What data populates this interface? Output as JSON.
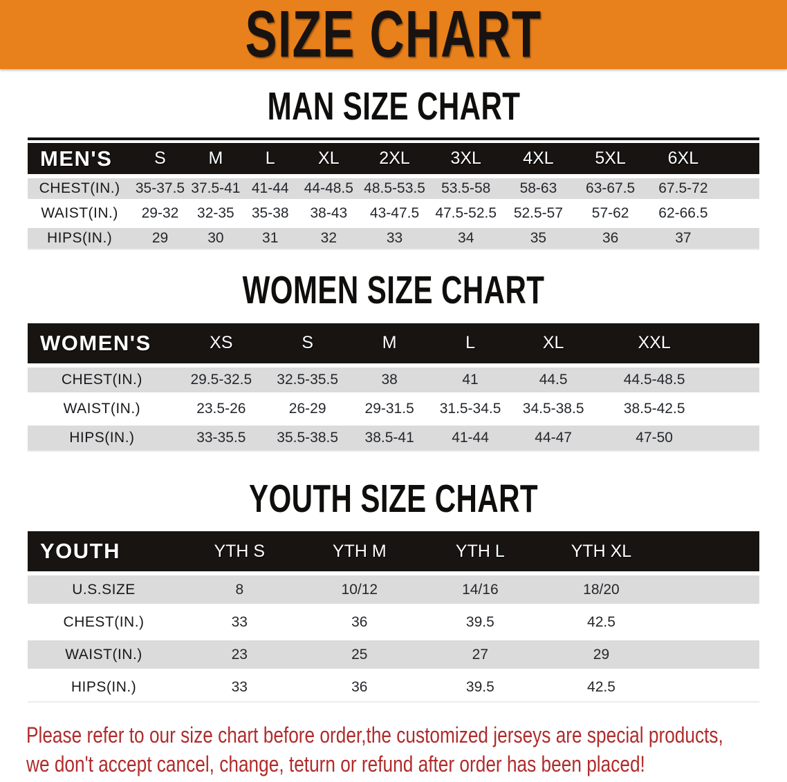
{
  "banner": {
    "title": "SIZE CHART"
  },
  "sections": [
    {
      "id": "men",
      "heading": "MAN SIZE CHART",
      "table": {
        "header": [
          "MEN'S",
          "S",
          "M",
          "L",
          "XL",
          "2XL",
          "3XL",
          "4XL",
          "5XL",
          "6XL"
        ],
        "rows": [
          {
            "label": "CHEST(IN.)",
            "values": [
              "35-37.5",
              "37.5-41",
              "41-44",
              "44-48.5",
              "48.5-53.5",
              "53.5-58",
              "58-63",
              "63-67.5",
              "67.5-72"
            ]
          },
          {
            "label": "WAIST(IN.)",
            "values": [
              "29-32",
              "32-35",
              "35-38",
              "38-43",
              "43-47.5",
              "47.5-52.5",
              "52.5-57",
              "57-62",
              "62-66.5"
            ]
          },
          {
            "label": "HIPS(IN.)",
            "values": [
              "29",
              "30",
              "31",
              "32",
              "33",
              "34",
              "35",
              "36",
              "37"
            ]
          }
        ]
      }
    },
    {
      "id": "women",
      "heading": "WOMEN SIZE CHART",
      "table": {
        "header": [
          "WOMEN'S",
          "XS",
          "S",
          "M",
          "L",
          "XL",
          "XXL"
        ],
        "rows": [
          {
            "label": "CHEST(IN.)",
            "values": [
              "29.5-32.5",
              "32.5-35.5",
              "38",
              "41",
              "44.5",
              "44.5-48.5"
            ]
          },
          {
            "label": "WAIST(IN.)",
            "values": [
              "23.5-26",
              "26-29",
              "29-31.5",
              "31.5-34.5",
              "34.5-38.5",
              "38.5-42.5"
            ]
          },
          {
            "label": "HIPS(IN.)",
            "values": [
              "33-35.5",
              "35.5-38.5",
              "38.5-41",
              "41-44",
              "44-47",
              "47-50"
            ]
          }
        ]
      }
    },
    {
      "id": "youth",
      "heading": "YOUTH SIZE CHART",
      "table": {
        "header": [
          "YOUTH",
          "YTH S",
          "YTH M",
          "YTH L",
          "YTH XL"
        ],
        "rows": [
          {
            "label": "U.S.SIZE",
            "values": [
              "8",
              "10/12",
              "14/16",
              "18/20"
            ]
          },
          {
            "label": "CHEST(IN.)",
            "values": [
              "33",
              "36",
              "39.5",
              "42.5"
            ]
          },
          {
            "label": "WAIST(IN.)",
            "values": [
              "23",
              "25",
              "27",
              "29"
            ]
          },
          {
            "label": "HIPS(IN.)",
            "values": [
              "33",
              "36",
              "39.5",
              "42.5"
            ]
          }
        ]
      }
    }
  ],
  "footer": {
    "line1": "Please refer to our size chart before order,the customized jerseys are special products,",
    "line2": "we don't accept cancel, change, teturn or refund after order has been placed!"
  },
  "colors": {
    "banner_orange": "#E8811B",
    "header_black": "#171412",
    "row_gray": "#DBDBDB",
    "disclaimer_red": "#B02C2C"
  }
}
